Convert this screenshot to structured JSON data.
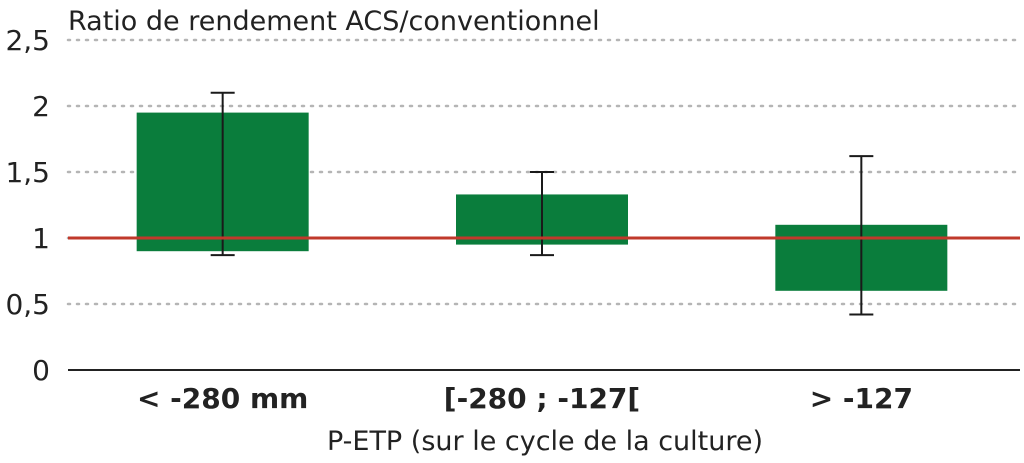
{
  "chart_data": {
    "type": "bar",
    "ylabel": "Ratio de rendement ACS/conventionnel",
    "xlabel": "P-ETP (sur le cycle de la culture)",
    "categories": [
      "< -280 mm",
      "[-280 ; -127[",
      "> -127"
    ],
    "series": [
      {
        "low": [
          0.9,
          0.95,
          0.6
        ],
        "high": [
          1.95,
          1.33,
          1.1
        ],
        "error_low": [
          0.87,
          0.87,
          0.42
        ],
        "error_high": [
          2.1,
          1.5,
          1.62
        ]
      }
    ],
    "reference_line": 1,
    "yticks": [
      "0",
      "0,5",
      "1",
      "1,5",
      "2",
      "2,5"
    ],
    "ylim": [
      0,
      2.5
    ],
    "grid": "dotted horizontal",
    "colors": {
      "bar": "#0a7d3c",
      "reference": "#c0392b",
      "error": "#1a1a1a"
    }
  }
}
